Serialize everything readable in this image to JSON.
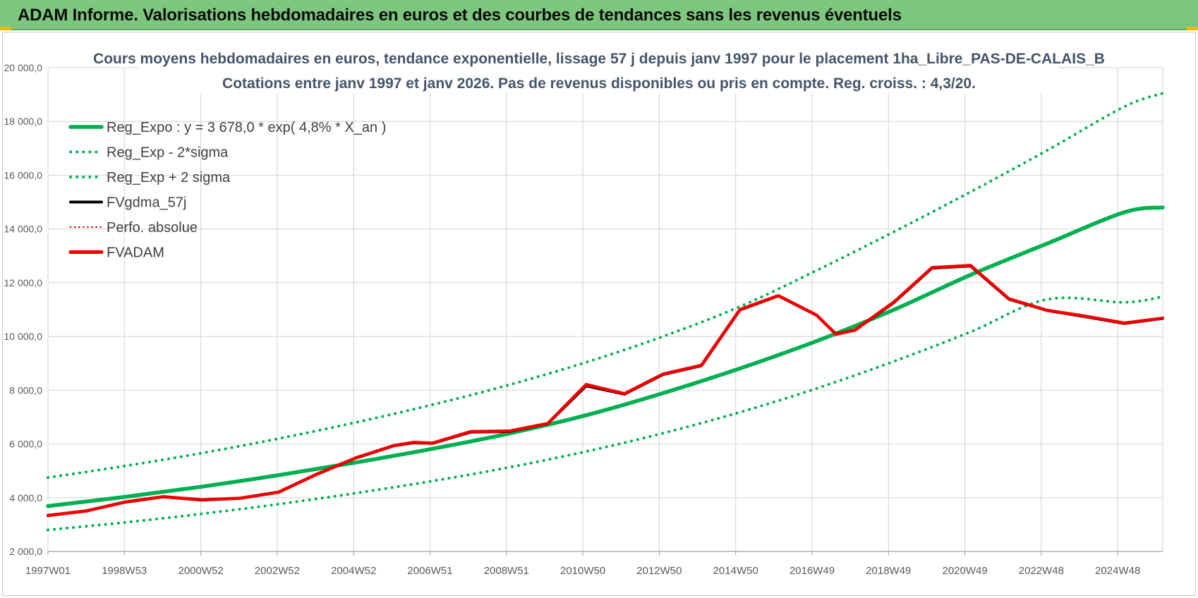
{
  "banner": {
    "title": "ADAM Informe. Valorisations hebdomadaires en euros et des courbes de tendances sans les revenus éventuels"
  },
  "colors": {
    "banner_bg": "#7dc67d",
    "reg_expo": "#00b050",
    "fvgdma": "#000000",
    "perfo": "#e00000",
    "fvadam": "#ee0000",
    "grid": "#d9d9d9",
    "title_text": "#44546a"
  },
  "chart_data": {
    "type": "line",
    "title": "Cours moyens hebdomadaires en euros, tendance exponentielle, lissage 57 j depuis janv 1997 pour le placement 1ha_Libre_PAS-DE-CALAIS_B",
    "subtitle": "Cotations entre janv 1997 et janv 2026. Pas de revenus disponibles ou pris  en compte. Reg. croiss. : 4,3/20.",
    "x_tick_labels": [
      "1997W01",
      "1998W53",
      "2000W52",
      "2002W52",
      "2004W52",
      "2006W51",
      "2008W51",
      "2010W50",
      "2012W50",
      "2014W50",
      "2016W49",
      "2018W49",
      "2020W49",
      "2022W48",
      "2024W48"
    ],
    "x_range_years": [
      0,
      29
    ],
    "y_tick_labels": [
      "2 000,0",
      "4 000,0",
      "6 000,0",
      "8 000,0",
      "10 000,0",
      "12 000,0",
      "14 000,0",
      "16 000,0",
      "18 000,0",
      "20 000,0"
    ],
    "ylim": [
      2000,
      20000
    ],
    "grid": true,
    "legend_position": "top-left",
    "legend": [
      {
        "label": "Reg_Expo : y = 3 678,0 * exp( 4,8% *  X_an )",
        "color": "#00b050",
        "style": "solid",
        "width": "thick"
      },
      {
        "label": "Reg_Exp - 2*sigma",
        "color": "#00b050",
        "style": "dotted",
        "width": "medium"
      },
      {
        "label": "Reg_Exp + 2 sigma",
        "color": "#00b050",
        "style": "dotted",
        "width": "medium"
      },
      {
        "label": "FVgdma_57j",
        "color": "#000000",
        "style": "solid",
        "width": "medium"
      },
      {
        "label": "Perfo. absolue",
        "color": "#e00000",
        "style": "dotted",
        "width": "thin"
      },
      {
        "label": "FVADAM",
        "color": "#ee0000",
        "style": "solid",
        "width": "thick"
      }
    ],
    "series": [
      {
        "name": "Reg_Expo",
        "x": [
          0,
          2,
          4,
          6,
          8,
          10,
          12,
          14,
          16,
          18,
          20,
          22,
          24,
          26,
          28,
          29
        ],
        "values": [
          3690,
          4030,
          4410,
          4840,
          5310,
          5820,
          6390,
          7070,
          7890,
          8810,
          9830,
          10990,
          12290,
          13460,
          14620,
          14800
        ]
      },
      {
        "name": "Reg_Exp - 2*sigma",
        "x": [
          0,
          2,
          4,
          6,
          8,
          10,
          12,
          14,
          16,
          18,
          20,
          22,
          24,
          26,
          28,
          29
        ],
        "values": [
          2800,
          3080,
          3400,
          3760,
          4170,
          4620,
          5130,
          5720,
          6400,
          7180,
          8070,
          9070,
          10170,
          11380,
          11270,
          11480
        ]
      },
      {
        "name": "Reg_Exp + 2 sigma",
        "x": [
          0,
          2,
          4,
          6,
          8,
          10,
          12,
          14,
          16,
          18,
          20,
          22,
          24,
          26,
          28,
          29
        ],
        "values": [
          4750,
          5180,
          5660,
          6200,
          6800,
          7460,
          8200,
          9040,
          10000,
          11110,
          12460,
          13890,
          15380,
          16930,
          18550,
          19050
        ]
      },
      {
        "name": "FVgdma_57j",
        "x": [
          0,
          1,
          2,
          3,
          4,
          5,
          6,
          7,
          8,
          9,
          9.5,
          10,
          11,
          12,
          13,
          14,
          15,
          16,
          17,
          18,
          19,
          20,
          20.5,
          21,
          21.5,
          22,
          23,
          24,
          25,
          26,
          27,
          28,
          29
        ],
        "values": [
          3330,
          3510,
          3830,
          4030,
          3910,
          3980,
          4200,
          4870,
          5470,
          5930,
          6040,
          6020,
          6440,
          6460,
          6750,
          8160,
          7850,
          8580,
          8910,
          10980,
          11510,
          10780,
          10100,
          10240,
          10740,
          11250,
          12540,
          12620,
          11380,
          10960,
          10730,
          10480,
          10670
        ]
      },
      {
        "name": "FVADAM",
        "x": [
          0,
          1,
          2,
          3,
          4,
          5,
          6,
          7,
          8,
          9,
          9.5,
          10,
          11,
          12,
          13,
          14,
          15,
          16,
          17,
          18,
          19,
          20,
          20.5,
          21,
          21.5,
          22,
          23,
          24,
          25,
          26,
          27,
          28,
          29
        ],
        "values": [
          3340,
          3510,
          3840,
          4040,
          3920,
          3980,
          4210,
          4880,
          5480,
          5940,
          6060,
          6030,
          6460,
          6480,
          6760,
          8210,
          7870,
          8600,
          8930,
          11000,
          11520,
          10790,
          10080,
          10240,
          10760,
          11270,
          12560,
          12640,
          11400,
          10970,
          10750,
          10500,
          10680
        ]
      }
    ]
  }
}
